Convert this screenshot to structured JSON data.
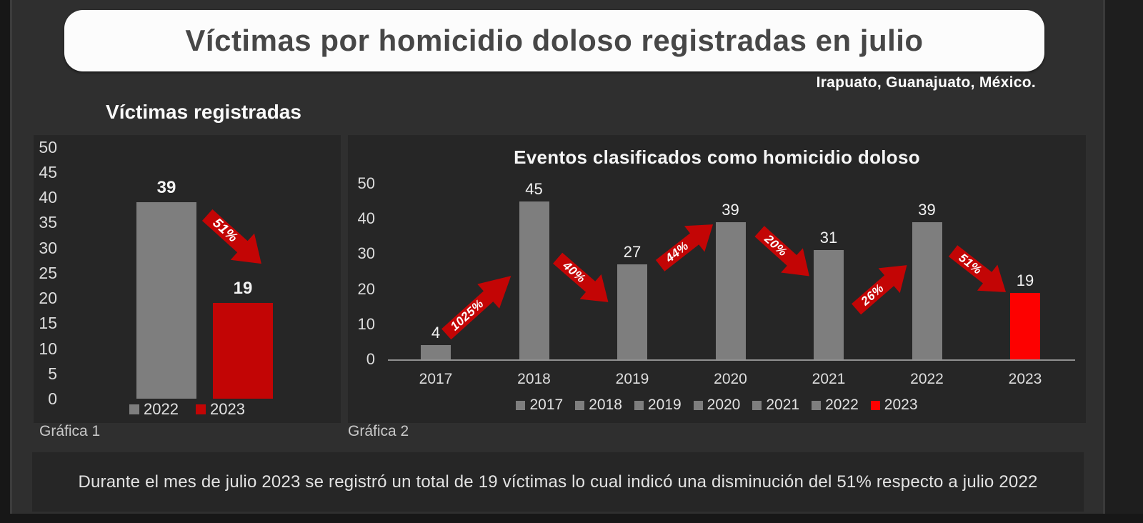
{
  "page": {
    "title": "Víctimas por homicidio doloso registradas en julio",
    "location": "Irapuato, Guanajuato, México.",
    "caption_left": "Gráfica 1",
    "caption_right": "Gráfica 2",
    "footer": "Durante el mes de julio 2023 se registró un total de 19 víctimas lo cual indicó una disminución del 51% respecto a julio 2022"
  },
  "colors": {
    "background": "#2f2f2f",
    "panel": "#262626",
    "gray_bar": "#7e7e7e",
    "dark_red": "#c20505",
    "bright_red": "#fd0100",
    "arrow_red": "#c30505",
    "title_box_bg": "#fcfcfc",
    "title_text": "#474747",
    "light_text": "#e3e3e3"
  },
  "chart_data": [
    {
      "type": "bar",
      "title": "Víctimas registradas",
      "categories": [
        "2022",
        "2023"
      ],
      "values": [
        39,
        19
      ],
      "bar_colors": [
        "#7e7e7e",
        "#c20505"
      ],
      "ylim": [
        0,
        50
      ],
      "ytick_step": 5,
      "grid": false,
      "x_axis_labels": false,
      "legend_position": "bottom",
      "legend": [
        {
          "label": "2022",
          "color": "#7e7e7e"
        },
        {
          "label": "2023",
          "color": "#c20505"
        }
      ],
      "annotations": [
        {
          "label": "51%",
          "direction": "down",
          "from": "2022",
          "to": "2023"
        }
      ]
    },
    {
      "type": "bar",
      "title": "Eventos clasificados como homicidio doloso",
      "categories": [
        "2017",
        "2018",
        "2019",
        "2020",
        "2021",
        "2022",
        "2023"
      ],
      "values": [
        4,
        45,
        27,
        39,
        31,
        39,
        19
      ],
      "bar_colors": [
        "#7e7e7e",
        "#7e7e7e",
        "#7e7e7e",
        "#7e7e7e",
        "#7e7e7e",
        "#7e7e7e",
        "#fd0100"
      ],
      "ylim": [
        0,
        50
      ],
      "ytick_step": 10,
      "grid": false,
      "x_axis_labels": true,
      "legend_position": "bottom",
      "legend": [
        {
          "label": "2017",
          "color": "#7e7e7e"
        },
        {
          "label": "2018",
          "color": "#7e7e7e"
        },
        {
          "label": "2019",
          "color": "#7e7e7e"
        },
        {
          "label": "2020",
          "color": "#7e7e7e"
        },
        {
          "label": "2021",
          "color": "#7e7e7e"
        },
        {
          "label": "2022",
          "color": "#7e7e7e"
        },
        {
          "label": "2023",
          "color": "#fd0100"
        }
      ],
      "annotations": [
        {
          "label": "1025%",
          "direction": "up",
          "from": "2017",
          "to": "2018"
        },
        {
          "label": "40%",
          "direction": "down",
          "from": "2018",
          "to": "2019"
        },
        {
          "label": "44%",
          "direction": "up",
          "from": "2019",
          "to": "2020"
        },
        {
          "label": "20%",
          "direction": "down",
          "from": "2020",
          "to": "2021"
        },
        {
          "label": "26%",
          "direction": "up",
          "from": "2021",
          "to": "2022"
        },
        {
          "label": "51%",
          "direction": "down",
          "from": "2022",
          "to": "2023"
        }
      ]
    }
  ]
}
